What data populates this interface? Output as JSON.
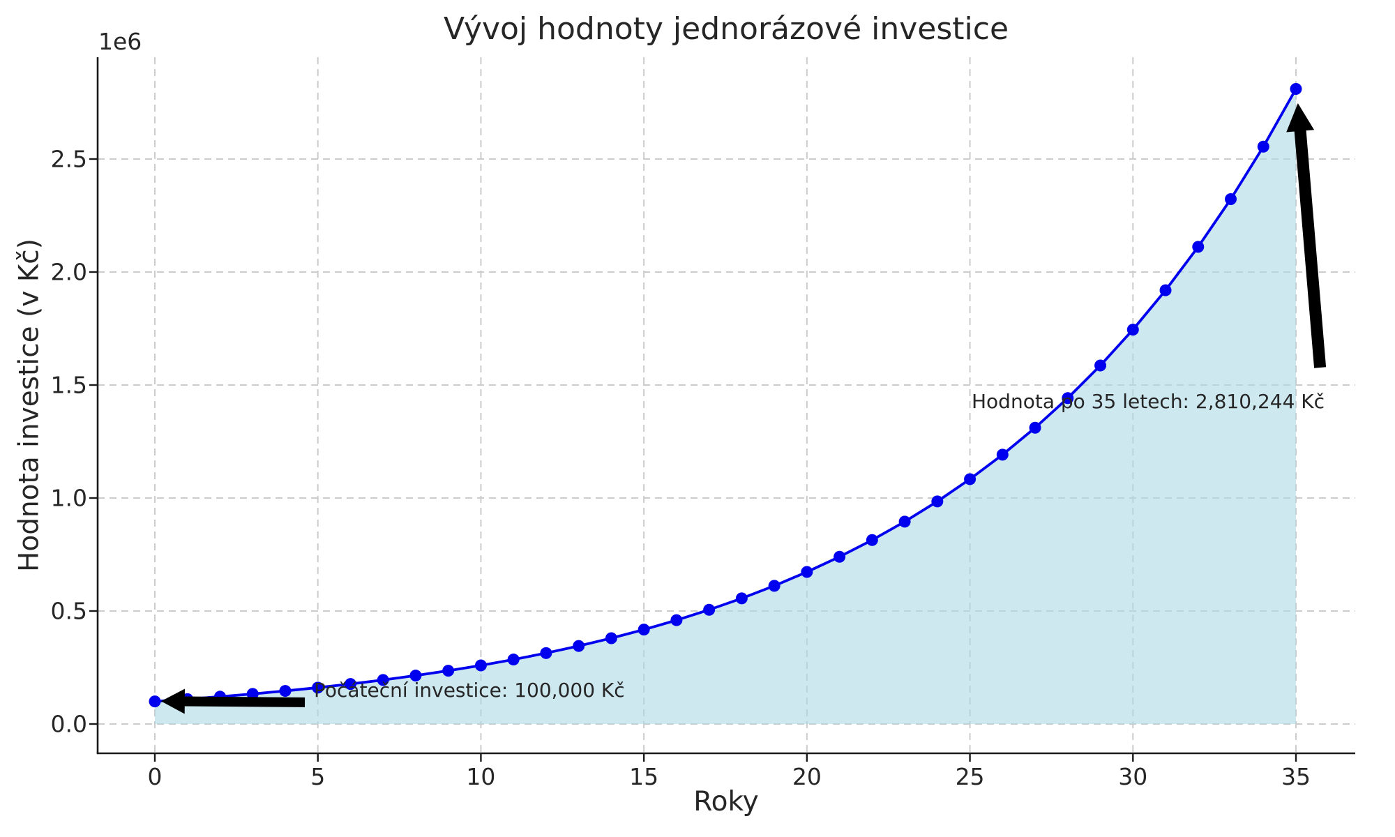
{
  "chart_data": {
    "type": "line",
    "title": "Vývoj hodnoty jednorázové investice",
    "xlabel": "Roky",
    "ylabel": "Hodnota investice (v Kč)",
    "offset_text": "1e6",
    "x": [
      0,
      1,
      2,
      3,
      4,
      5,
      6,
      7,
      8,
      9,
      10,
      11,
      12,
      13,
      14,
      15,
      16,
      17,
      18,
      19,
      20,
      21,
      22,
      23,
      24,
      25,
      26,
      27,
      28,
      29,
      30,
      31,
      32,
      33,
      34,
      35
    ],
    "values": [
      100000,
      110000,
      121000,
      133100,
      146410,
      161051,
      177156,
      194872,
      214359,
      235795,
      259374,
      285312,
      313843,
      345227,
      379750,
      417725,
      459497,
      505447,
      555992,
      611591,
      672750,
      740025,
      814027,
      895430,
      984973,
      1083471,
      1191818,
      1310999,
      1442099,
      1586309,
      1744940,
      1919434,
      2111378,
      2322515,
      2554767,
      2810244
    ],
    "xticks": [
      0,
      5,
      10,
      15,
      20,
      25,
      30,
      35
    ],
    "xtick_labels": [
      "0",
      "5",
      "10",
      "15",
      "20",
      "25",
      "30",
      "35"
    ],
    "yticks": [
      0,
      500000,
      1000000,
      1500000,
      2000000,
      2500000
    ],
    "ytick_labels": [
      "0.0",
      "0.5",
      "1.0",
      "1.5",
      "2.0",
      "2.5"
    ],
    "xlim": [
      -1.75,
      36.82
    ],
    "ylim": [
      -130000,
      2950000
    ],
    "grid": true,
    "legend": "none",
    "line_color": "#0000ee",
    "marker_color": "#0000ee",
    "fill_color": "#add8e6",
    "grid_color": "#cccccc",
    "arrow_color": "#000000",
    "annotations": [
      {
        "text": "Počáteční investice: 100,000 Kč",
        "arrow_to": {
          "x": 0.19,
          "y": 101000
        },
        "arrow_from": {
          "x": 4.6,
          "y": 96000
        }
      },
      {
        "text": "Hodnota po 35 letech: 2,810,244 Kč",
        "arrow_to": {
          "x": 35.06,
          "y": 2747000
        },
        "arrow_from": {
          "x": 35.74,
          "y": 1577000
        }
      }
    ]
  }
}
